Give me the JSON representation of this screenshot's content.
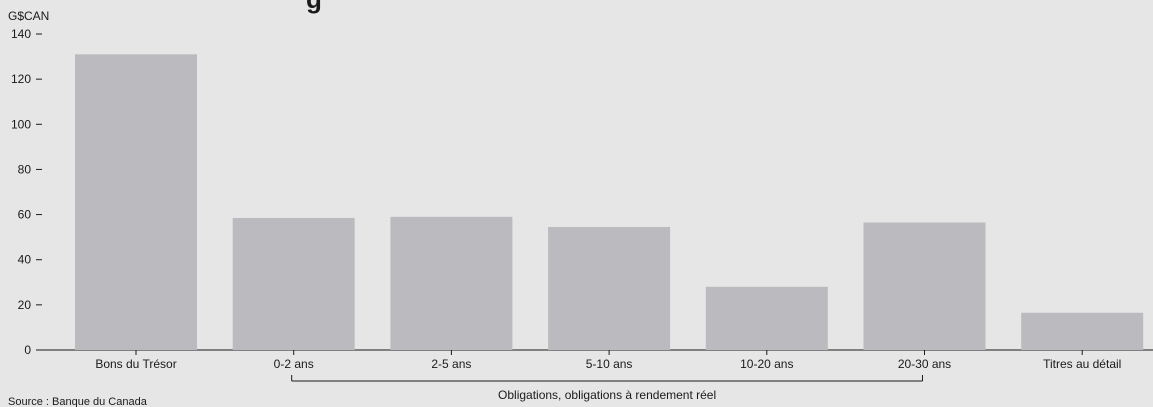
{
  "chart_data": {
    "type": "bar",
    "unit_label": "G$CAN",
    "categories": [
      "Bons du Trésor",
      "0-2 ans",
      "2-5 ans",
      "5-10 ans",
      "10-20 ans",
      "20-30 ans",
      "Titres au détail"
    ],
    "values": [
      131,
      58.5,
      59,
      54.5,
      28,
      56.5,
      16.5
    ],
    "ylim": [
      0,
      140
    ],
    "yticks": [
      0,
      20,
      40,
      60,
      80,
      100,
      120,
      140
    ],
    "bar_color": "#bbbbbf",
    "group_bracket": {
      "label": "Obligations, obligations à rendement réel",
      "from": "0-2 ans",
      "to": "20-30 ans"
    },
    "source": "Source : Banque du Canada",
    "grid": false
  }
}
